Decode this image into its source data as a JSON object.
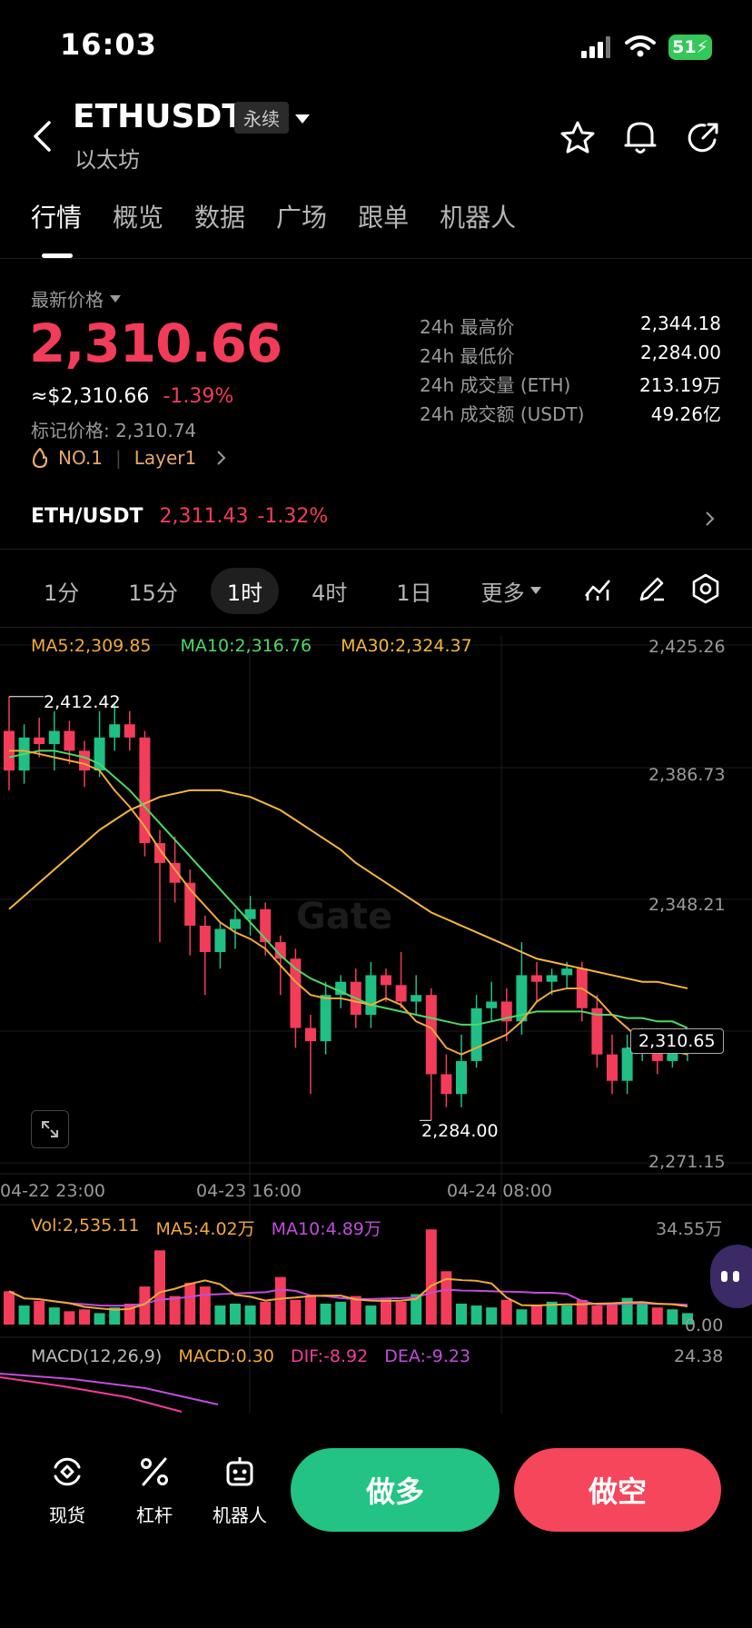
{
  "status": {
    "time": "16:03",
    "battery": "51"
  },
  "header": {
    "title": "ETHUSDT",
    "badge": "永续",
    "subtitle": "以太坊"
  },
  "tabs": [
    {
      "label": "行情"
    },
    {
      "label": "概览"
    },
    {
      "label": "数据"
    },
    {
      "label": "广场"
    },
    {
      "label": "跟单"
    },
    {
      "label": "机器人"
    }
  ],
  "ticker": {
    "latest_label": "最新价格",
    "price": "2,310.66",
    "usd_value": "≈$2,310.66",
    "change": "-1.39%",
    "mark_price": "标记价格: 2,310.74",
    "rank_tag": "NO.1",
    "sector_tag": "Layer1",
    "stats": [
      {
        "label": "24h 最高价",
        "value": "2,344.18"
      },
      {
        "label": "24h 最低价",
        "value": "2,284.00"
      },
      {
        "label": "24h 成交量 (ETH)",
        "value": "213.19万"
      },
      {
        "label": "24h 成交额 (USDT)",
        "value": "49.26亿"
      }
    ]
  },
  "spot_pair": {
    "label": "ETH/USDT",
    "price": "2,311.43",
    "change": "-1.32%"
  },
  "intervals": [
    {
      "label": "1分"
    },
    {
      "label": "15分"
    },
    {
      "label": "1时"
    },
    {
      "label": "4时"
    },
    {
      "label": "1日"
    },
    {
      "label": "更多"
    }
  ],
  "chart_legend": {
    "ma5": "MA5:2,309.85",
    "ma10": "MA10:2,316.76",
    "ma30": "MA30:2,324.37"
  },
  "volume_legend": {
    "vol": "Vol:2,535.11",
    "ma5": "MA5:4.02万",
    "ma10": "MA10:4.89万",
    "top": "34.55万",
    "bottom": "0.00"
  },
  "macd_legend": {
    "name": "MACD(12,26,9)",
    "macd": "MACD:0.30",
    "dif": "DIF:-8.92",
    "dea": "DEA:-9.23",
    "top": "24.38"
  },
  "colors": {
    "up": "#1fbf86",
    "down": "#f23c5a",
    "ma5": "#f2a93b",
    "ma10": "#4cd964",
    "ma30": "#f5b73b"
  },
  "chart_data": {
    "type": "candlestick",
    "y_ticks": [
      "2,425.26",
      "2,386.73",
      "2,348.21",
      "2,271.15"
    ],
    "ylim": [
      2271.15,
      2425.26
    ],
    "x_ticks": [
      "04-22 23:00",
      "04-23 16:00",
      "04-24 08:00"
    ],
    "high_label": "2,412.42",
    "low_label": "2,284.00",
    "current_label": "2,310.65",
    "candles": [
      [
        2402,
        2390,
        2412.4,
        2384
      ],
      [
        2390,
        2400,
        2404,
        2386
      ],
      [
        2400,
        2398,
        2406,
        2394
      ],
      [
        2398,
        2402,
        2408,
        2390
      ],
      [
        2402,
        2396,
        2405,
        2392
      ],
      [
        2396,
        2390,
        2399,
        2385
      ],
      [
        2390,
        2400,
        2408,
        2388
      ],
      [
        2400,
        2404,
        2410,
        2396
      ],
      [
        2404,
        2400,
        2408,
        2396
      ],
      [
        2400,
        2368,
        2402,
        2364
      ],
      [
        2368,
        2362,
        2372,
        2338
      ],
      [
        2362,
        2356,
        2370,
        2350
      ],
      [
        2356,
        2343,
        2360,
        2334
      ],
      [
        2343,
        2335,
        2346,
        2322
      ],
      [
        2335,
        2342,
        2344,
        2330
      ],
      [
        2342,
        2345,
        2348,
        2336
      ],
      [
        2345,
        2348,
        2352,
        2340
      ],
      [
        2348,
        2338,
        2350,
        2334
      ],
      [
        2338,
        2333,
        2340,
        2322
      ],
      [
        2333,
        2312,
        2336,
        2306
      ],
      [
        2312,
        2308,
        2316,
        2292
      ],
      [
        2308,
        2322,
        2326,
        2304
      ],
      [
        2322,
        2326,
        2328,
        2318
      ],
      [
        2326,
        2316,
        2330,
        2312
      ],
      [
        2316,
        2328,
        2332,
        2312
      ],
      [
        2328,
        2325,
        2330,
        2320
      ],
      [
        2325,
        2320,
        2335,
        2318
      ],
      [
        2320,
        2322,
        2328,
        2316
      ],
      [
        2322,
        2298,
        2324,
        2284
      ],
      [
        2298,
        2292,
        2304,
        2288
      ],
      [
        2292,
        2302,
        2310,
        2288
      ],
      [
        2302,
        2318,
        2322,
        2300
      ],
      [
        2318,
        2320,
        2326,
        2314
      ],
      [
        2320,
        2314,
        2324,
        2308
      ],
      [
        2314,
        2328,
        2338,
        2310
      ],
      [
        2328,
        2326,
        2332,
        2320
      ],
      [
        2326,
        2328,
        2330,
        2322
      ],
      [
        2328,
        2330,
        2332,
        2324
      ],
      [
        2330,
        2318,
        2332,
        2314
      ],
      [
        2318,
        2304,
        2322,
        2300
      ],
      [
        2304,
        2296,
        2310,
        2292
      ],
      [
        2296,
        2306,
        2310,
        2292
      ],
      [
        2306,
        2308,
        2312,
        2302
      ],
      [
        2308,
        2302,
        2312,
        2298
      ],
      [
        2302,
        2306,
        2310,
        2300
      ],
      [
        2306,
        2306,
        2308,
        2302
      ]
    ],
    "ma5": [
      2396,
      2396,
      2395,
      2394,
      2393,
      2392,
      2390,
      2384,
      2379,
      2373,
      2366,
      2360,
      2354,
      2349,
      2344,
      2341,
      2339,
      2336,
      2331,
      2326,
      2322,
      2321,
      2321,
      2320,
      2319,
      2321,
      2319,
      2314,
      2312,
      2306,
      2304,
      2306,
      2308,
      2310,
      2314,
      2320,
      2323,
      2324,
      2324,
      2321,
      2316,
      2312,
      2308,
      2306,
      2305,
      2304
    ],
    "ma10": [
      2394,
      2395,
      2396,
      2396,
      2395,
      2394,
      2392,
      2388,
      2384,
      2379,
      2374,
      2369,
      2364,
      2359,
      2354,
      2349,
      2344,
      2339,
      2334,
      2330,
      2327,
      2325,
      2323,
      2321,
      2319,
      2318,
      2317,
      2316,
      2315,
      2314,
      2313,
      2313,
      2314,
      2315,
      2316,
      2317,
      2317,
      2317,
      2317,
      2316,
      2316,
      2315,
      2315,
      2314,
      2314,
      2312
    ],
    "ma30": [
      2348,
      2352,
      2356,
      2360,
      2364,
      2368,
      2372,
      2375,
      2378,
      2380,
      2382,
      2383,
      2384,
      2384,
      2384,
      2383,
      2382,
      2380,
      2378,
      2375,
      2372,
      2369,
      2366,
      2362,
      2359,
      2356,
      2353,
      2350,
      2347,
      2345,
      2343,
      2341,
      2339,
      2337,
      2335,
      2333,
      2332,
      2331,
      2330,
      2329,
      2328,
      2327,
      2326,
      2326,
      2325,
      2324
    ],
    "volume": [
      3.5,
      2.0,
      2.5,
      1.8,
      1.4,
      1.6,
      1.2,
      1.8,
      2.2,
      4.0,
      7.8,
      3.0,
      4.4,
      4.0,
      2.0,
      2.2,
      2.0,
      2.4,
      5.0,
      2.6,
      3.0,
      2.2,
      2.4,
      3.0,
      2.0,
      2.8,
      2.4,
      3.2,
      10.0,
      5.6,
      2.2,
      2.0,
      1.8,
      2.6,
      1.6,
      2.0,
      2.4,
      2.0,
      2.6,
      2.0,
      2.2,
      2.8,
      2.2,
      1.8,
      1.6,
      1.2
    ]
  }
}
